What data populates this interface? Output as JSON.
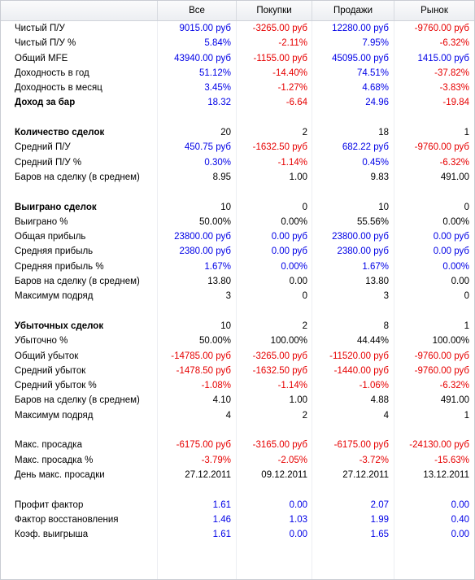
{
  "header": {
    "columns": [
      "Все",
      "Покупки",
      "Продажи",
      "Рынок"
    ]
  },
  "rows": [
    {
      "label": "Чистый П/У",
      "values": [
        "9015.00 руб",
        "-3265.00 руб",
        "12280.00 руб",
        "-9760.00 руб"
      ],
      "colors": [
        "blue",
        "red",
        "blue",
        "red"
      ]
    },
    {
      "label": "Чистый П/У %",
      "values": [
        "5.84%",
        "-2.11%",
        "7.95%",
        "-6.32%"
      ],
      "colors": [
        "blue",
        "red",
        "blue",
        "red"
      ]
    },
    {
      "label": "Общий MFE",
      "values": [
        "43940.00 руб",
        "-1155.00 руб",
        "45095.00 руб",
        "1415.00 руб"
      ],
      "colors": [
        "blue",
        "red",
        "blue",
        "blue"
      ]
    },
    {
      "label": "Доходность в год",
      "values": [
        "51.12%",
        "-14.40%",
        "74.51%",
        "-37.82%"
      ],
      "colors": [
        "blue",
        "red",
        "blue",
        "red"
      ]
    },
    {
      "label": "Доходность в месяц",
      "values": [
        "3.45%",
        "-1.27%",
        "4.68%",
        "-3.83%"
      ],
      "colors": [
        "blue",
        "red",
        "blue",
        "red"
      ]
    },
    {
      "label": "Доход за бар",
      "bold": true,
      "values": [
        "18.32",
        "-6.64",
        "24.96",
        "-19.84"
      ],
      "colors": [
        "blue",
        "red",
        "blue",
        "red"
      ]
    },
    {
      "blank": true
    },
    {
      "label": "Количество сделок",
      "bold": true,
      "values": [
        "20",
        "2",
        "18",
        "1"
      ],
      "colors": [
        "black",
        "black",
        "black",
        "black"
      ]
    },
    {
      "label": "Средний П/У",
      "values": [
        "450.75 руб",
        "-1632.50 руб",
        "682.22 руб",
        "-9760.00 руб"
      ],
      "colors": [
        "blue",
        "red",
        "blue",
        "red"
      ]
    },
    {
      "label": "Средний П/У %",
      "values": [
        "0.30%",
        "-1.14%",
        "0.45%",
        "-6.32%"
      ],
      "colors": [
        "blue",
        "red",
        "blue",
        "red"
      ]
    },
    {
      "label": "Баров на сделку (в среднем)",
      "values": [
        "8.95",
        "1.00",
        "9.83",
        "491.00"
      ],
      "colors": [
        "black",
        "black",
        "black",
        "black"
      ]
    },
    {
      "blank": true
    },
    {
      "label": "Выиграно сделок",
      "bold": true,
      "values": [
        "10",
        "0",
        "10",
        "0"
      ],
      "colors": [
        "black",
        "black",
        "black",
        "black"
      ]
    },
    {
      "label": "Выиграно %",
      "values": [
        "50.00%",
        "0.00%",
        "55.56%",
        "0.00%"
      ],
      "colors": [
        "black",
        "black",
        "black",
        "black"
      ]
    },
    {
      "label": "Общая прибыль",
      "values": [
        "23800.00 руб",
        "0.00 руб",
        "23800.00 руб",
        "0.00 руб"
      ],
      "colors": [
        "blue",
        "blue",
        "blue",
        "blue"
      ]
    },
    {
      "label": "Средняя прибыль",
      "values": [
        "2380.00 руб",
        "0.00 руб",
        "2380.00 руб",
        "0.00 руб"
      ],
      "colors": [
        "blue",
        "blue",
        "blue",
        "blue"
      ]
    },
    {
      "label": "Средняя прибыль %",
      "values": [
        "1.67%",
        "0.00%",
        "1.67%",
        "0.00%"
      ],
      "colors": [
        "blue",
        "blue",
        "blue",
        "blue"
      ]
    },
    {
      "label": "Баров на сделку (в среднем)",
      "values": [
        "13.80",
        "0.00",
        "13.80",
        "0.00"
      ],
      "colors": [
        "black",
        "black",
        "black",
        "black"
      ]
    },
    {
      "label": "Максимум подряд",
      "values": [
        "3",
        "0",
        "3",
        "0"
      ],
      "colors": [
        "black",
        "black",
        "black",
        "black"
      ]
    },
    {
      "blank": true
    },
    {
      "label": "Убыточных сделок",
      "bold": true,
      "values": [
        "10",
        "2",
        "8",
        "1"
      ],
      "colors": [
        "black",
        "black",
        "black",
        "black"
      ]
    },
    {
      "label": "Убыточно %",
      "values": [
        "50.00%",
        "100.00%",
        "44.44%",
        "100.00%"
      ],
      "colors": [
        "black",
        "black",
        "black",
        "black"
      ]
    },
    {
      "label": "Общий убыток",
      "values": [
        "-14785.00 руб",
        "-3265.00 руб",
        "-11520.00 руб",
        "-9760.00 руб"
      ],
      "colors": [
        "red",
        "red",
        "red",
        "red"
      ]
    },
    {
      "label": "Средний убыток",
      "values": [
        "-1478.50 руб",
        "-1632.50 руб",
        "-1440.00 руб",
        "-9760.00 руб"
      ],
      "colors": [
        "red",
        "red",
        "red",
        "red"
      ]
    },
    {
      "label": "Средний убыток %",
      "values": [
        "-1.08%",
        "-1.14%",
        "-1.06%",
        "-6.32%"
      ],
      "colors": [
        "red",
        "red",
        "red",
        "red"
      ]
    },
    {
      "label": "Баров на сделку (в среднем)",
      "values": [
        "4.10",
        "1.00",
        "4.88",
        "491.00"
      ],
      "colors": [
        "black",
        "black",
        "black",
        "black"
      ]
    },
    {
      "label": "Максимум подряд",
      "values": [
        "4",
        "2",
        "4",
        "1"
      ],
      "colors": [
        "black",
        "black",
        "black",
        "black"
      ]
    },
    {
      "blank": true
    },
    {
      "label": "Макс. просадка",
      "values": [
        "-6175.00 руб",
        "-3165.00 руб",
        "-6175.00 руб",
        "-24130.00 руб"
      ],
      "colors": [
        "red",
        "red",
        "red",
        "red"
      ]
    },
    {
      "label": "Макс. просадка %",
      "values": [
        "-3.79%",
        "-2.05%",
        "-3.72%",
        "-15.63%"
      ],
      "colors": [
        "red",
        "red",
        "red",
        "red"
      ]
    },
    {
      "label": "День макс. просадки",
      "values": [
        "27.12.2011",
        "09.12.2011",
        "27.12.2011",
        "13.12.2011"
      ],
      "colors": [
        "black",
        "black",
        "black",
        "black"
      ]
    },
    {
      "blank": true
    },
    {
      "label": "Профит фактор",
      "values": [
        "1.61",
        "0.00",
        "2.07",
        "0.00"
      ],
      "colors": [
        "blue",
        "blue",
        "blue",
        "blue"
      ]
    },
    {
      "label": "Фактор восстановления",
      "values": [
        "1.46",
        "1.03",
        "1.99",
        "0.40"
      ],
      "colors": [
        "blue",
        "blue",
        "blue",
        "blue"
      ]
    },
    {
      "label": "Коэф. выигрыша",
      "values": [
        "1.61",
        "0.00",
        "1.65",
        "0.00"
      ],
      "colors": [
        "blue",
        "blue",
        "blue",
        "blue"
      ]
    }
  ]
}
